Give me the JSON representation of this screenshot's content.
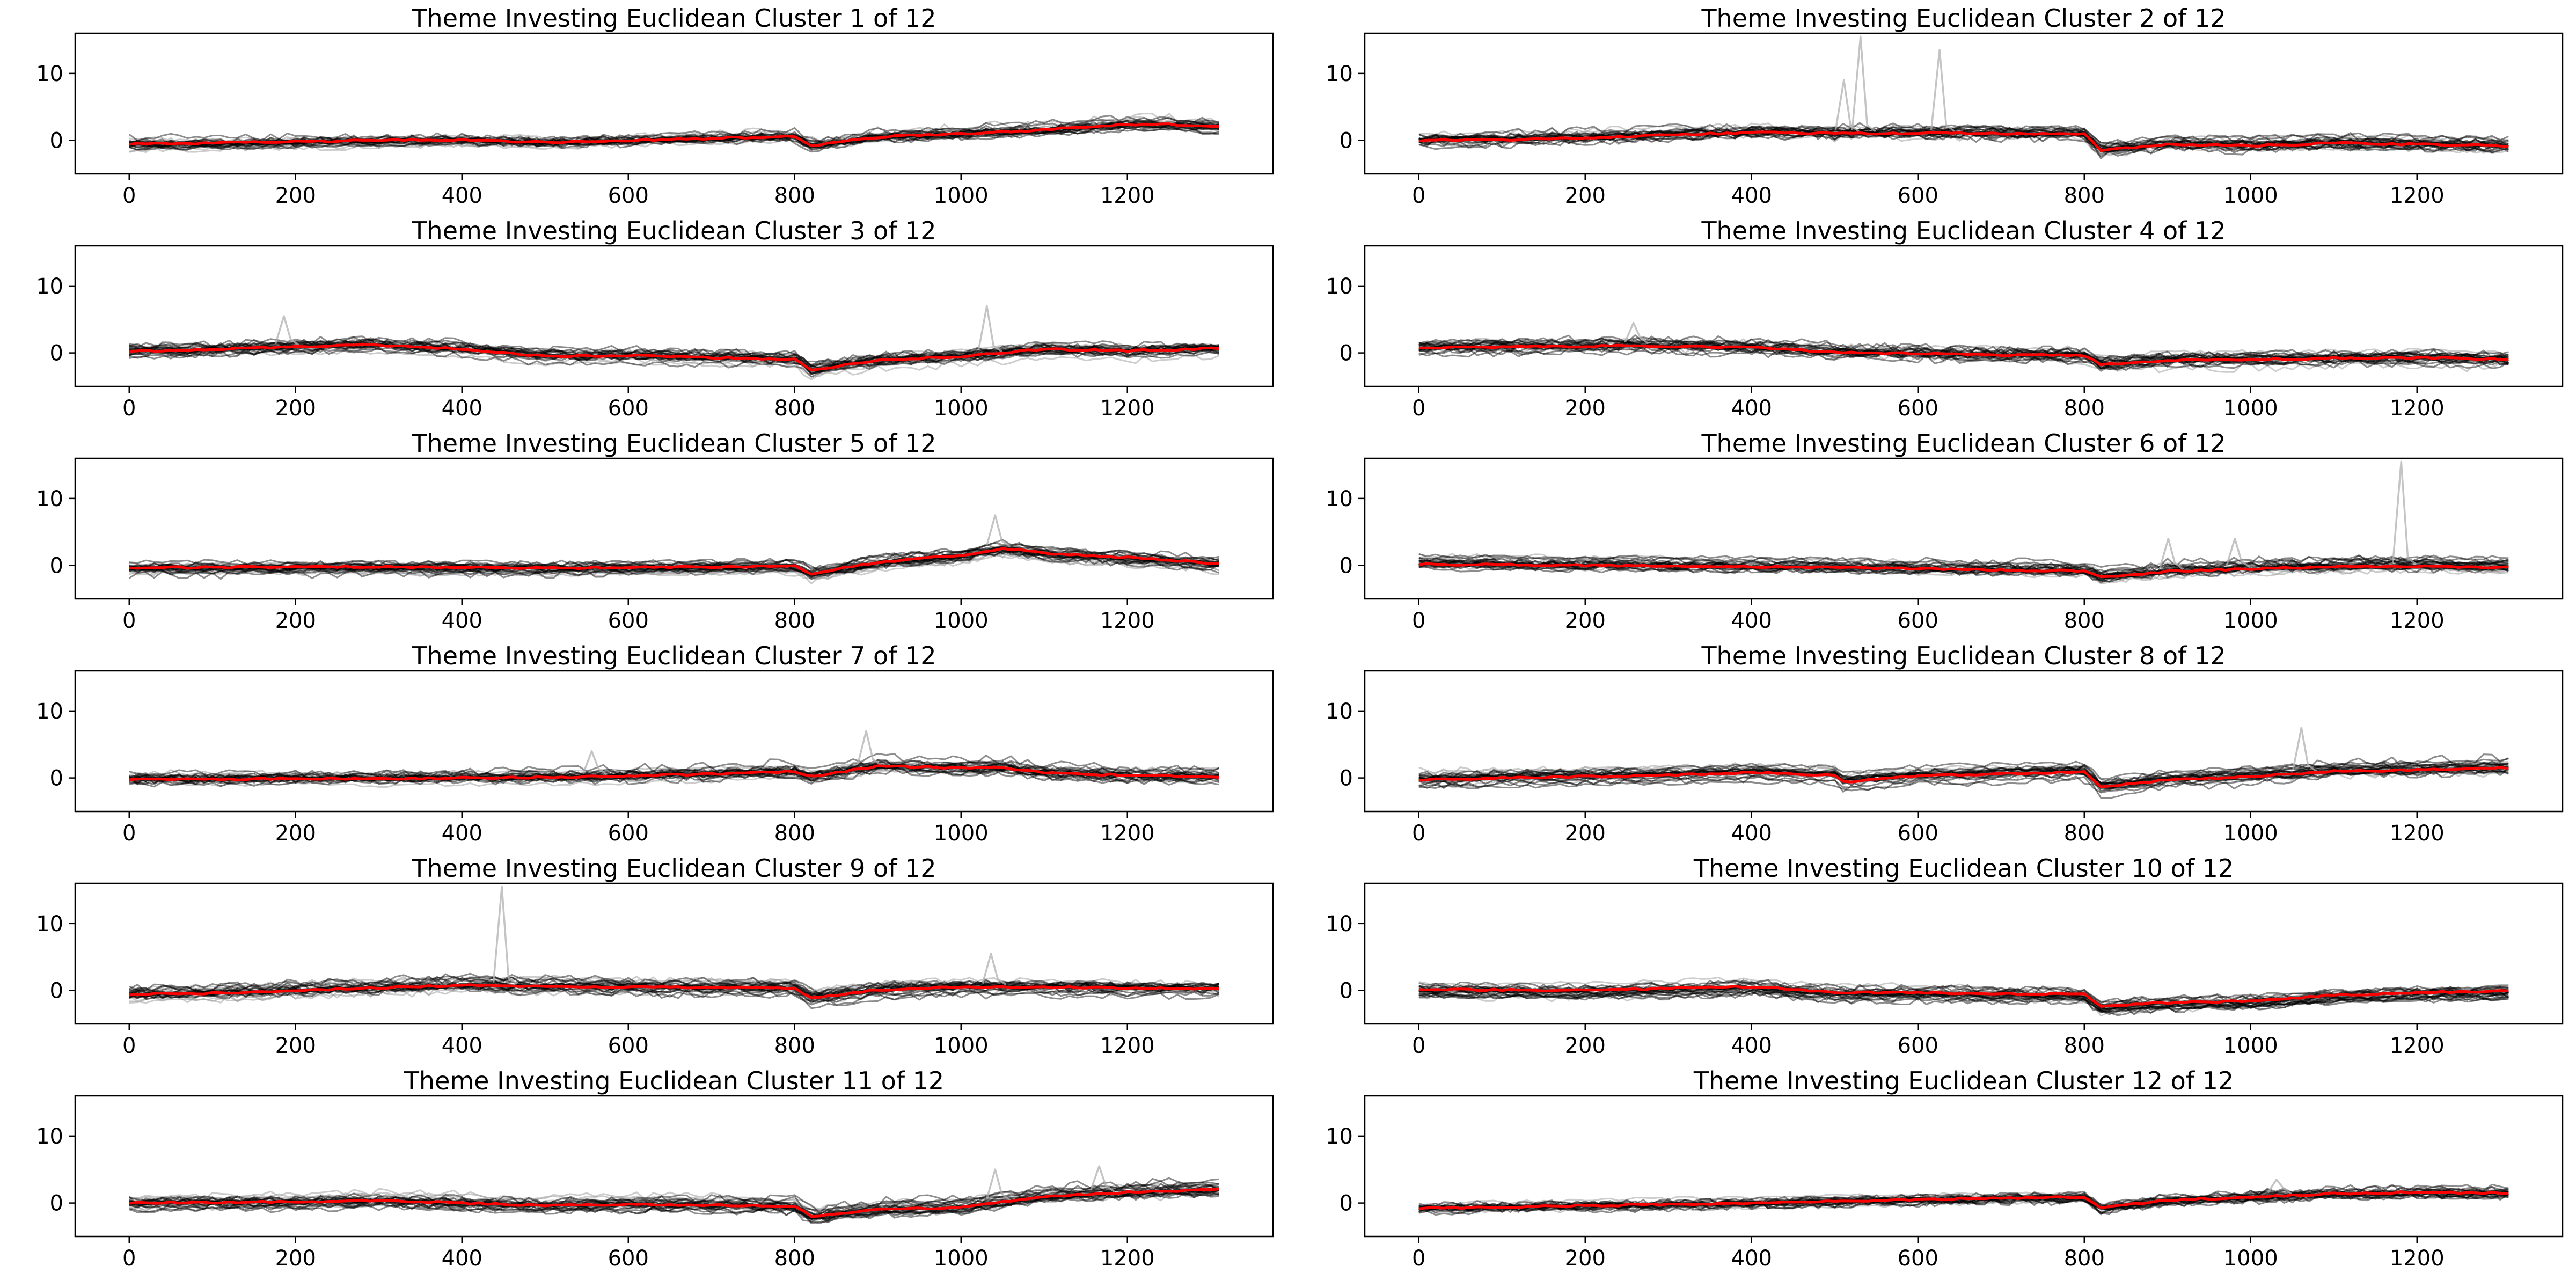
{
  "chart_data": [
    {
      "type": "line",
      "title": "Theme Investing Euclidean Cluster 1 of 12",
      "xlim": [
        -65,
        1375
      ],
      "ylim": [
        -5,
        16
      ],
      "xticks": [
        0,
        200,
        400,
        600,
        800,
        1000,
        1200
      ],
      "yticks": [
        0,
        10
      ],
      "series": [
        {
          "role": "centroid",
          "color": "#ff0000",
          "x": [
            0,
            100,
            200,
            300,
            400,
            500,
            600,
            700,
            800,
            820,
            900,
            1000,
            1100,
            1200,
            1250,
            1310
          ],
          "values": [
            -0.5,
            -0.4,
            -0.2,
            0,
            0.1,
            -0.3,
            0,
            0.3,
            0.6,
            -0.8,
            0.5,
            1,
            1.6,
            2.4,
            2.4,
            2
          ]
        },
        {
          "role": "members",
          "color": "#000000",
          "spread": 1.0
        }
      ],
      "spikes": []
    },
    {
      "type": "line",
      "title": "Theme Investing Euclidean Cluster 2 of 12",
      "xlim": [
        -65,
        1375
      ],
      "ylim": [
        -5,
        16
      ],
      "xticks": [
        0,
        200,
        400,
        600,
        800,
        1000,
        1200
      ],
      "yticks": [
        0,
        10
      ],
      "series": [
        {
          "role": "centroid",
          "color": "#ff0000",
          "x": [
            0,
            100,
            200,
            300,
            400,
            500,
            600,
            700,
            800,
            820,
            900,
            1000,
            1100,
            1200,
            1310
          ],
          "values": [
            0,
            0.1,
            0.4,
            0.8,
            1.2,
            1,
            1.1,
            1,
            0.9,
            -1.5,
            -0.6,
            -0.8,
            -0.4,
            -0.6,
            -0.8
          ]
        },
        {
          "role": "members",
          "color": "#000000",
          "spread": 1.4
        }
      ],
      "spikes": [
        {
          "x": 515,
          "y": 9
        },
        {
          "x": 535,
          "y": 15.5
        },
        {
          "x": 630,
          "y": 13.5
        }
      ]
    },
    {
      "type": "line",
      "title": "Theme Investing Euclidean Cluster 3 of 12",
      "xlim": [
        -65,
        1375
      ],
      "ylim": [
        -5,
        16
      ],
      "xticks": [
        0,
        200,
        400,
        600,
        800,
        1000,
        1200
      ],
      "yticks": [
        0,
        10
      ],
      "series": [
        {
          "role": "centroid",
          "color": "#ff0000",
          "x": [
            0,
            100,
            200,
            280,
            400,
            500,
            600,
            700,
            800,
            820,
            900,
            1000,
            1100,
            1200,
            1310
          ],
          "values": [
            0.3,
            0.5,
            0.9,
            1.2,
            0.6,
            -0.5,
            -0.4,
            -0.7,
            -0.9,
            -2.5,
            -1.1,
            -0.5,
            0.6,
            0.3,
            0.7
          ]
        },
        {
          "role": "members",
          "color": "#000000",
          "spread": 1.5
        }
      ],
      "spikes": [
        {
          "x": 190,
          "y": 5.5
        },
        {
          "x": 1035,
          "y": 7
        }
      ]
    },
    {
      "type": "line",
      "title": "Theme Investing Euclidean Cluster 4 of 12",
      "xlim": [
        -65,
        1375
      ],
      "ylim": [
        -5,
        16
      ],
      "xticks": [
        0,
        200,
        400,
        600,
        800,
        1000,
        1200
      ],
      "yticks": [
        0,
        10
      ],
      "series": [
        {
          "role": "centroid",
          "color": "#ff0000",
          "x": [
            0,
            100,
            200,
            260,
            400,
            500,
            600,
            700,
            800,
            820,
            900,
            1000,
            1100,
            1200,
            1310
          ],
          "values": [
            0.8,
            0.9,
            1,
            1.1,
            0.8,
            0.1,
            -0.1,
            -0.3,
            -0.4,
            -1.7,
            -1.1,
            -1,
            -0.8,
            -0.7,
            -1
          ]
        },
        {
          "role": "members",
          "color": "#000000",
          "spread": 1.1
        }
      ],
      "spikes": [
        {
          "x": 262,
          "y": 4.5
        }
      ]
    },
    {
      "type": "line",
      "title": "Theme Investing Euclidean Cluster 5 of 12",
      "xlim": [
        -65,
        1375
      ],
      "ylim": [
        -5,
        16
      ],
      "xticks": [
        0,
        200,
        400,
        600,
        800,
        1000,
        1200
      ],
      "yticks": [
        0,
        10
      ],
      "series": [
        {
          "role": "centroid",
          "color": "#ff0000",
          "x": [
            0,
            100,
            200,
            300,
            400,
            500,
            600,
            700,
            800,
            820,
            900,
            1000,
            1050,
            1100,
            1200,
            1310
          ],
          "values": [
            -0.3,
            -0.3,
            -0.2,
            -0.2,
            -0.3,
            -0.4,
            -0.3,
            -0.2,
            -0.1,
            -1.2,
            0.5,
            1.5,
            2.6,
            1.8,
            1.2,
            0.3
          ]
        },
        {
          "role": "members",
          "color": "#000000",
          "spread": 1.1
        }
      ],
      "spikes": [
        {
          "x": 1045,
          "y": 7.5
        }
      ]
    },
    {
      "type": "line",
      "title": "Theme Investing Euclidean Cluster 6 of 12",
      "xlim": [
        -65,
        1375
      ],
      "ylim": [
        -5,
        16
      ],
      "xticks": [
        0,
        200,
        400,
        600,
        800,
        1000,
        1200
      ],
      "yticks": [
        0,
        10
      ],
      "series": [
        {
          "role": "centroid",
          "color": "#ff0000",
          "x": [
            0,
            100,
            200,
            300,
            400,
            500,
            600,
            700,
            800,
            820,
            900,
            1000,
            1100,
            1200,
            1310
          ],
          "values": [
            0.2,
            0.1,
            0,
            -0.1,
            -0.2,
            -0.3,
            -0.5,
            -0.7,
            -0.8,
            -1.8,
            -0.9,
            -0.5,
            -0.2,
            -0.1,
            -0.3
          ]
        },
        {
          "role": "members",
          "color": "#000000",
          "spread": 1.3
        }
      ],
      "spikes": [
        {
          "x": 905,
          "y": 4
        },
        {
          "x": 985,
          "y": 4
        },
        {
          "x": 1185,
          "y": 15.5
        }
      ]
    },
    {
      "type": "line",
      "title": "Theme Investing Euclidean Cluster 7 of 12",
      "xlim": [
        -65,
        1375
      ],
      "ylim": [
        -5,
        16
      ],
      "xticks": [
        0,
        200,
        400,
        600,
        800,
        1000,
        1200
      ],
      "yticks": [
        0,
        10
      ],
      "series": [
        {
          "role": "centroid",
          "color": "#ff0000",
          "x": [
            0,
            100,
            200,
            300,
            400,
            500,
            600,
            700,
            800,
            820,
            900,
            1000,
            1050,
            1100,
            1200,
            1310
          ],
          "values": [
            -0.2,
            -0.2,
            -0.1,
            -0.1,
            0,
            0.1,
            0.3,
            0.6,
            1,
            0.2,
            1.8,
            1.5,
            1.6,
            0.8,
            0.4,
            0.2
          ]
        },
        {
          "role": "members",
          "color": "#000000",
          "spread": 1.2
        }
      ],
      "spikes": [
        {
          "x": 890,
          "y": 7
        },
        {
          "x": 560,
          "y": 4
        }
      ]
    },
    {
      "type": "line",
      "title": "Theme Investing Euclidean Cluster 8 of 12",
      "xlim": [
        -65,
        1375
      ],
      "ylim": [
        -5,
        16
      ],
      "xticks": [
        0,
        200,
        400,
        600,
        800,
        1000,
        1200
      ],
      "yticks": [
        0,
        10
      ],
      "series": [
        {
          "role": "centroid",
          "color": "#ff0000",
          "x": [
            0,
            100,
            200,
            300,
            400,
            500,
            510,
            600,
            700,
            800,
            820,
            900,
            1000,
            1100,
            1200,
            1310
          ],
          "values": [
            -0.3,
            0,
            0.2,
            0.4,
            0.8,
            0.4,
            -0.6,
            0.3,
            0.6,
            0.9,
            -1.4,
            -0.3,
            0.2,
            1,
            1.2,
            1.5
          ]
        },
        {
          "role": "members",
          "color": "#000000",
          "spread": 1.4
        }
      ],
      "spikes": [
        {
          "x": 1065,
          "y": 7.5
        }
      ]
    },
    {
      "type": "line",
      "title": "Theme Investing Euclidean Cluster 9 of 12",
      "xlim": [
        -65,
        1375
      ],
      "ylim": [
        -5,
        16
      ],
      "xticks": [
        0,
        200,
        400,
        600,
        800,
        1000,
        1200
      ],
      "yticks": [
        0,
        10
      ],
      "series": [
        {
          "role": "centroid",
          "color": "#ff0000",
          "x": [
            0,
            100,
            200,
            300,
            400,
            500,
            600,
            700,
            800,
            820,
            900,
            1000,
            1100,
            1200,
            1310
          ],
          "values": [
            -0.6,
            -0.4,
            0,
            0.4,
            0.8,
            0.6,
            0.5,
            0.4,
            0.4,
            -1.1,
            0.1,
            0.6,
            0.5,
            0.4,
            0.3
          ]
        },
        {
          "role": "members",
          "color": "#000000",
          "spread": 1.3
        }
      ],
      "spikes": [
        {
          "x": 452,
          "y": 15.5
        },
        {
          "x": 1040,
          "y": 5.5
        }
      ]
    },
    {
      "type": "line",
      "title": "Theme Investing Euclidean Cluster 10 of 12",
      "xlim": [
        -65,
        1375
      ],
      "ylim": [
        -5,
        16
      ],
      "xticks": [
        0,
        200,
        400,
        600,
        800,
        1000,
        1200
      ],
      "yticks": [
        0,
        10
      ],
      "series": [
        {
          "role": "centroid",
          "color": "#ff0000",
          "x": [
            0,
            100,
            200,
            300,
            400,
            500,
            600,
            700,
            800,
            820,
            900,
            1000,
            1100,
            1200,
            1310
          ],
          "values": [
            0.2,
            0.1,
            0,
            0.3,
            0.6,
            -0.3,
            -0.3,
            -0.5,
            -0.6,
            -2.4,
            -1.8,
            -1.6,
            -0.7,
            -0.3,
            -0.1
          ]
        },
        {
          "role": "members",
          "color": "#000000",
          "spread": 1.3
        }
      ],
      "spikes": []
    },
    {
      "type": "line",
      "title": "Theme Investing Euclidean Cluster 11 of 12",
      "xlim": [
        -65,
        1375
      ],
      "ylim": [
        -5,
        16
      ],
      "xticks": [
        0,
        200,
        400,
        600,
        800,
        1000,
        1200
      ],
      "yticks": [
        0,
        10
      ],
      "series": [
        {
          "role": "centroid",
          "color": "#ff0000",
          "x": [
            0,
            100,
            200,
            300,
            400,
            500,
            600,
            700,
            800,
            820,
            900,
            1000,
            1100,
            1200,
            1310
          ],
          "values": [
            0,
            0.1,
            0.2,
            0.4,
            0,
            -0.4,
            -0.2,
            -0.3,
            -0.5,
            -2,
            -1,
            -0.6,
            1,
            1.6,
            2
          ]
        },
        {
          "role": "members",
          "color": "#000000",
          "spread": 1.2
        }
      ],
      "spikes": [
        {
          "x": 1045,
          "y": 5
        },
        {
          "x": 1170,
          "y": 5.5
        }
      ]
    },
    {
      "type": "line",
      "title": "Theme Investing Euclidean Cluster 12 of 12",
      "xlim": [
        -65,
        1375
      ],
      "ylim": [
        -5,
        16
      ],
      "xticks": [
        0,
        200,
        400,
        600,
        800,
        1000,
        1200
      ],
      "yticks": [
        0,
        10
      ],
      "series": [
        {
          "role": "centroid",
          "color": "#ff0000",
          "x": [
            0,
            100,
            200,
            300,
            400,
            500,
            600,
            700,
            800,
            820,
            900,
            1000,
            1100,
            1200,
            1310
          ],
          "values": [
            -0.8,
            -0.6,
            -0.4,
            -0.2,
            0,
            0.3,
            0.5,
            0.7,
            0.9,
            -0.7,
            0.4,
            0.9,
            1.4,
            1.6,
            1.5
          ]
        },
        {
          "role": "members",
          "color": "#000000",
          "spread": 0.9
        }
      ],
      "spikes": [
        {
          "x": 1035,
          "y": 3.5
        }
      ]
    }
  ]
}
